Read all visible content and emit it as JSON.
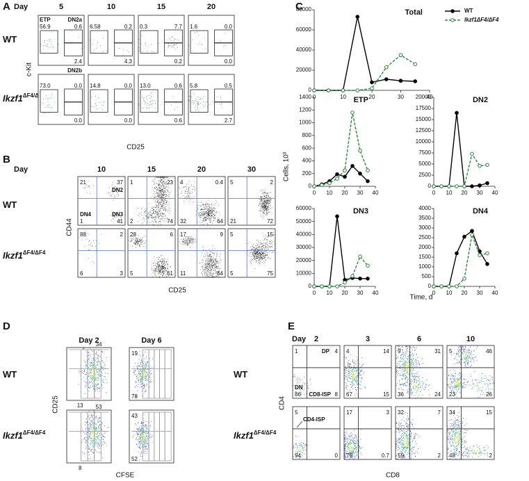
{
  "genotypes": [
    {
      "text": "WT"
    },
    {
      "text": "Ikzf1",
      "sup": "ΔF4/ΔF4"
    }
  ],
  "day_label": "Day",
  "panels": {
    "A": {
      "letter": "A",
      "days": [
        "5",
        "10",
        "15",
        "20"
      ],
      "y_label": "c-Kit",
      "x_label": "CD25",
      "plots": [
        [
          {
            "top_left_gate": "ETP",
            "top_left": "56.9",
            "top_right_gate": "DN2a",
            "top_right": "0.6",
            "bottom_right": "2.4",
            "bottom_right_gate": "DN2b"
          },
          {
            "top_left": "6.58",
            "top_right": "0.2",
            "bottom_right": "4.3"
          },
          {
            "top_left": "0.3",
            "top_right": "7.7",
            "bottom_right": "0.2"
          },
          {
            "top_left": "1.6",
            "top_right": "0.0",
            "bottom_right": "0.0"
          }
        ],
        [
          {
            "top_left": "73.0",
            "top_right": "0.0",
            "bottom_right": "0.0"
          },
          {
            "top_left": "14.8",
            "top_right": "0.0",
            "bottom_right": "0.0"
          },
          {
            "top_left": "13.0",
            "top_right": "0.6",
            "bottom_right": "0.6"
          },
          {
            "top_left": "5.8",
            "top_right": "0.5",
            "bottom_right": "2.7"
          }
        ]
      ]
    },
    "B": {
      "letter": "B",
      "days": [
        "10",
        "15",
        "20",
        "30"
      ],
      "y_label": "CD44",
      "x_label": "CD25",
      "plots": [
        [
          {
            "top_left": "21",
            "top_right": "37",
            "top_right_gate": "DN2",
            "bottom_left_gate": "DN4",
            "bottom_left": "1",
            "bottom_right_gate": "DN3",
            "bottom_right": "41"
          },
          {
            "top_left": "1",
            "top_right": "23",
            "bottom_left": "2",
            "bottom_right": "74"
          },
          {
            "top_left": "4",
            "top_right": "0.4",
            "bottom_left": "32",
            "bottom_right": "64"
          },
          {
            "top_left": "5",
            "top_right": "2",
            "bottom_left": "21",
            "bottom_right": "72"
          }
        ],
        [
          {
            "top_left": "88",
            "top_right": "2",
            "bottom_left": "6",
            "bottom_right": "3"
          },
          {
            "top_left": "28",
            "top_right": "6",
            "bottom_left": "5",
            "bottom_right": "61"
          },
          {
            "top_left": "17",
            "top_right": "9",
            "bottom_left": "11",
            "bottom_right": "64"
          },
          {
            "top_left": "5",
            "top_right": "15",
            "bottom_left": "5",
            "bottom_right": "75"
          }
        ]
      ]
    },
    "D": {
      "letter": "D",
      "days": [
        "Day 2",
        "Day 6"
      ],
      "y_label": "CD25",
      "x_label": "CFSE",
      "plots": [
        [
          {
            "top": "34",
            "bottom": "13"
          },
          {
            "top_left": "19",
            "bottom_left": "78"
          }
        ],
        [
          {
            "top": "53",
            "bottom": "8"
          },
          {
            "top_left": "43",
            "bottom_left": "52"
          }
        ]
      ]
    },
    "E": {
      "letter": "E",
      "days": [
        "2",
        "3",
        "6",
        "10"
      ],
      "y_label": "CD4",
      "x_label": "CD8",
      "plots": [
        [
          {
            "top_left": "1",
            "top_right_gate": "DP",
            "top_right": "4",
            "bottom_left_gate": "DN",
            "bottom_left": "86",
            "bottom_right_gate": "CD8-ISP",
            "bottom_right": "8"
          },
          {
            "top_left": "4",
            "top_right": "14",
            "bottom_left": "67",
            "bottom_right": "15"
          },
          {
            "top_left": "9",
            "top_right": "31",
            "bottom_left": "36",
            "bottom_right": "24"
          },
          {
            "top_left": "5",
            "top_right": "46",
            "bottom_left": "23",
            "bottom_right": "26"
          }
        ],
        [
          {
            "top_left": "5",
            "top_left_gate": "CD4-ISP",
            "bottom_left": "94",
            "bottom_right": "0"
          },
          {
            "top_left": "17",
            "top_right": "3",
            "bottom_left": "79",
            "bottom_right": "0.7"
          },
          {
            "top_left": "32",
            "top_right": "7",
            "bottom_left": "59",
            "bottom_right": "2"
          },
          {
            "top_left": "34",
            "top_right": "15",
            "bottom_left": "48",
            "bottom_right": "2"
          }
        ]
      ]
    }
  },
  "panel_c": {
    "letter": "C",
    "x_label": "Time, d",
    "y_label": "Cells, 10³"
  },
  "chart_data": [
    {
      "type": "line",
      "title": "Total",
      "x": [
        0,
        5,
        10,
        15,
        20,
        25,
        30,
        35
      ],
      "xlim": [
        0,
        40
      ],
      "xticks": [
        0,
        10,
        20,
        30,
        40
      ],
      "ylim": [
        0,
        80000
      ],
      "yticks": [
        0,
        20000,
        40000,
        60000,
        80000
      ],
      "series": [
        {
          "name": "WT",
          "color": "#000000",
          "values": [
            0,
            0,
            0,
            73000,
            8000,
            11000,
            9500,
            9000
          ]
        },
        {
          "name": "Ikzf1ΔF4/ΔF4",
          "color": "#2a8a3a",
          "values": [
            0,
            0,
            0,
            0,
            2000,
            23000,
            35000,
            26000
          ]
        }
      ]
    },
    {
      "type": "line",
      "title": "ETP",
      "x": [
        0,
        5,
        10,
        15,
        20,
        25,
        30,
        35
      ],
      "xlim": [
        0,
        40
      ],
      "xticks": [
        0,
        10,
        20,
        30,
        40
      ],
      "ylim": [
        0,
        1400
      ],
      "yticks": [
        0,
        200,
        400,
        600,
        800,
        1000,
        1200,
        1400
      ],
      "series": [
        {
          "color": "#000000",
          "values": [
            0,
            30,
            80,
            190,
            150,
            320,
            200,
            80
          ]
        },
        {
          "color": "#2a8a3a",
          "values": [
            0,
            20,
            50,
            120,
            250,
            1160,
            560,
            250
          ]
        }
      ]
    },
    {
      "type": "line",
      "title": "DN2",
      "x": [
        0,
        5,
        10,
        15,
        20,
        25,
        30,
        35
      ],
      "xlim": [
        0,
        40
      ],
      "xticks": [
        0,
        10,
        20,
        30,
        40
      ],
      "ylim": [
        0,
        20000
      ],
      "yticks": [
        0,
        2500,
        5000,
        7500,
        10000,
        12500,
        15000,
        17500,
        20000
      ],
      "series": [
        {
          "color": "#000000",
          "values": [
            0,
            0,
            0,
            16500,
            0,
            0,
            200,
            700
          ]
        },
        {
          "color": "#2a8a3a",
          "values": [
            0,
            0,
            0,
            0,
            0,
            7300,
            4600,
            4800
          ]
        }
      ]
    },
    {
      "type": "line",
      "title": "DN3",
      "x": [
        0,
        5,
        10,
        15,
        20,
        25,
        30,
        35
      ],
      "xlim": [
        0,
        40
      ],
      "xticks": [
        0,
        10,
        20,
        30,
        40
      ],
      "ylim": [
        0,
        60000
      ],
      "yticks": [
        0,
        10000,
        20000,
        30000,
        40000,
        50000,
        60000
      ],
      "series": [
        {
          "color": "#000000",
          "values": [
            0,
            0,
            0,
            54000,
            5000,
            6500,
            6000,
            6000
          ]
        },
        {
          "color": "#2a8a3a",
          "values": [
            0,
            0,
            0,
            0,
            3000,
            8000,
            23000,
            16000
          ]
        }
      ]
    },
    {
      "type": "line",
      "title": "DN4",
      "x": [
        0,
        5,
        10,
        15,
        20,
        25,
        30,
        35
      ],
      "xlim": [
        0,
        40
      ],
      "xticks": [
        0,
        10,
        20,
        30,
        40
      ],
      "ylim": [
        0,
        4000
      ],
      "yticks": [
        0,
        500,
        1000,
        1500,
        2000,
        2500,
        3000,
        3500,
        4000
      ],
      "series": [
        {
          "color": "#000000",
          "values": [
            0,
            0,
            0,
            1700,
            2550,
            2850,
            1800,
            1150
          ]
        },
        {
          "color": "#2a8a3a",
          "values": [
            0,
            0,
            0,
            0,
            400,
            2650,
            1600,
            1700
          ]
        }
      ]
    }
  ]
}
